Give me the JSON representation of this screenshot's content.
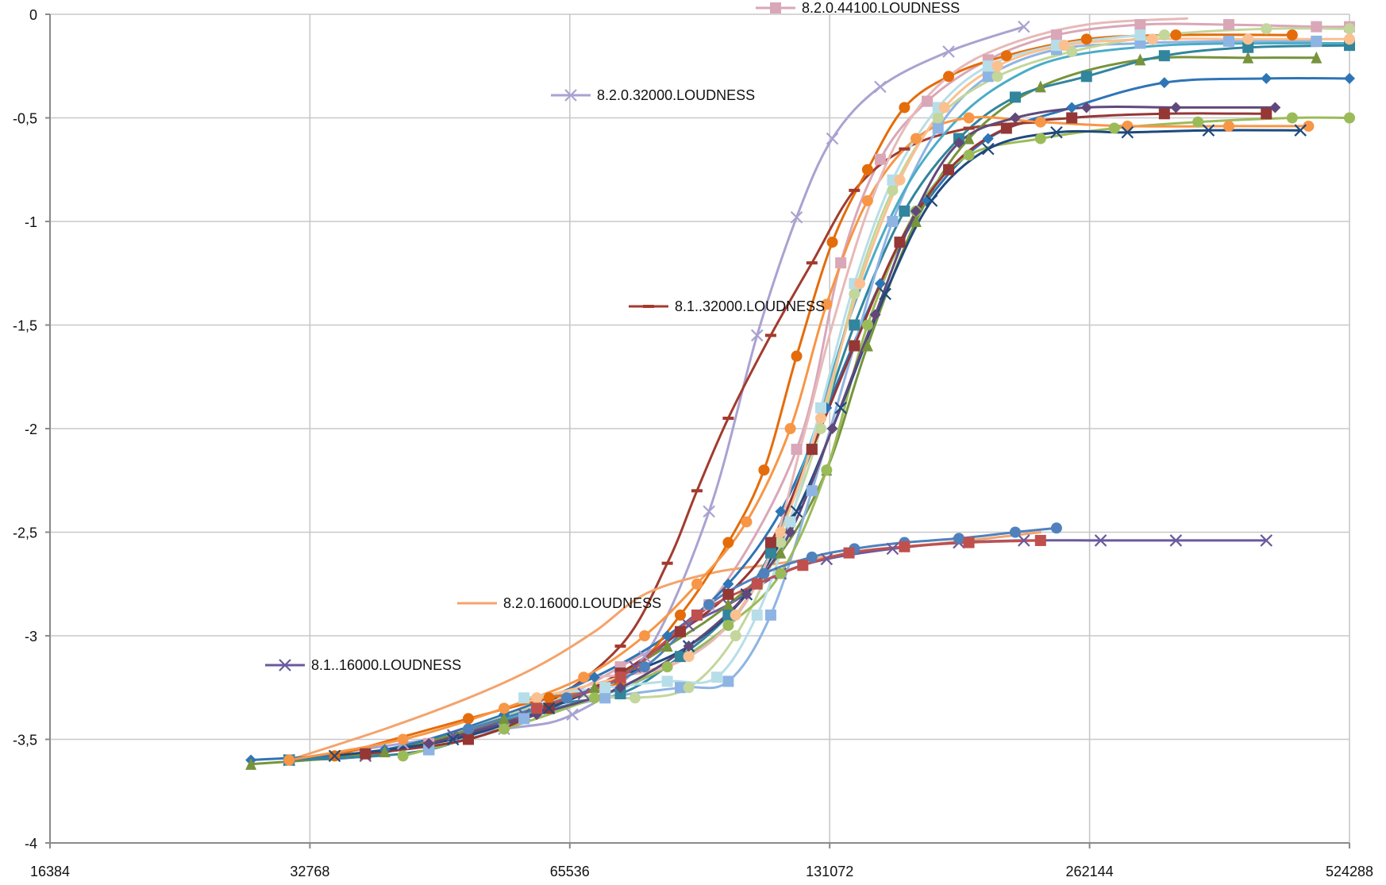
{
  "chart_data": {
    "type": "line",
    "x_scale": "log2",
    "xlim": [
      16384,
      524288
    ],
    "ylim": [
      -4,
      0
    ],
    "grid": true,
    "x_ticks": [
      16384,
      32768,
      65536,
      131072,
      262144,
      524288
    ],
    "x_tick_labels": [
      "16384",
      "32768",
      "65536",
      "131072",
      "262144",
      "524288"
    ],
    "y_ticks": [
      0,
      -0.5,
      -1,
      -1.5,
      -2,
      -2.5,
      -3,
      -3.5,
      -4
    ],
    "y_tick_labels": [
      "0",
      "-0,5",
      "-1",
      "-1,5",
      "-2",
      "-2,5",
      "-3",
      "-3,5",
      "-4"
    ],
    "series": [
      {
        "name": "8.2.0.44100.LOUDNESS",
        "color": "#d9a7b8",
        "marker": "square",
        "x": [
          31000,
          45000,
          60000,
          75000,
          95000,
          120000,
          135000,
          150000,
          170000,
          200000,
          240000,
          300000,
          380000,
          480000,
          524288
        ],
        "y": [
          -3.6,
          -3.52,
          -3.35,
          -3.15,
          -2.85,
          -2.1,
          -1.2,
          -0.7,
          -0.42,
          -0.22,
          -0.1,
          -0.05,
          -0.05,
          -0.06,
          -0.06
        ]
      },
      {
        "name": "8.2.0.32000.LOUDNESS",
        "color": "#a9a2d1",
        "marker": "x",
        "x": [
          31000,
          42000,
          55000,
          66000,
          80000,
          95000,
          108000,
          120000,
          132000,
          150000,
          180000,
          220000
        ],
        "y": [
          -3.6,
          -3.52,
          -3.45,
          -3.38,
          -3.1,
          -2.4,
          -1.55,
          -0.98,
          -0.6,
          -0.35,
          -0.18,
          -0.06
        ]
      },
      {
        "name": "8.1..32000.LOUDNESS",
        "color": "#a23b2e",
        "marker": "dash",
        "x": [
          31000,
          45000,
          60000,
          75000,
          85000,
          92000,
          100000,
          112000,
          125000,
          140000,
          160000,
          190000,
          230000
        ],
        "y": [
          -3.6,
          -3.52,
          -3.35,
          -3.05,
          -2.65,
          -2.3,
          -1.95,
          -1.55,
          -1.2,
          -0.85,
          -0.65,
          -0.55,
          -0.52
        ]
      },
      {
        "name": "8.2.0.16000.LOUDNESS",
        "color": "#f4a36c",
        "marker": "none",
        "x": [
          31000,
          40000,
          50000,
          60000,
          70000,
          80000,
          95000,
          110000,
          125000,
          140000,
          160000,
          180000,
          200000,
          230000
        ],
        "y": [
          -3.6,
          -3.45,
          -3.3,
          -3.15,
          -2.98,
          -2.8,
          -2.7,
          -2.66,
          -2.63,
          -2.6,
          -2.57,
          -2.55,
          -2.53,
          -2.5
        ]
      },
      {
        "name": "8.1..16000.LOUDNESS",
        "color": "#6b5a9e",
        "marker": "x",
        "x": [
          31000,
          38000,
          48000,
          58000,
          68000,
          78000,
          90000,
          100000,
          115000,
          130000,
          155000,
          185000,
          220000,
          270000,
          330000,
          420000
        ],
        "y": [
          -3.6,
          -3.58,
          -3.48,
          -3.38,
          -3.28,
          -3.15,
          -2.95,
          -2.85,
          -2.7,
          -2.63,
          -2.58,
          -2.55,
          -2.54,
          -2.54,
          -2.54,
          -2.54
        ]
      },
      {
        "name": "",
        "color": "#2e75b6",
        "marker": "diamond",
        "x": [
          28000,
          40000,
          55000,
          70000,
          85000,
          100000,
          115000,
          130000,
          150000,
          170000,
          200000,
          250000,
          320000,
          420000,
          524288
        ],
        "y": [
          -3.6,
          -3.55,
          -3.38,
          -3.2,
          -3.0,
          -2.75,
          -2.4,
          -1.9,
          -1.3,
          -0.9,
          -0.6,
          -0.45,
          -0.33,
          -0.31,
          -0.31
        ]
      },
      {
        "name": "",
        "color": "#77933c",
        "marker": "triangle",
        "x": [
          28000,
          40000,
          55000,
          70000,
          85000,
          100000,
          115000,
          130000,
          145000,
          165000,
          190000,
          230000,
          300000,
          400000,
          480000
        ],
        "y": [
          -3.62,
          -3.56,
          -3.4,
          -3.25,
          -3.05,
          -2.85,
          -2.6,
          -2.2,
          -1.6,
          -1.0,
          -0.6,
          -0.35,
          -0.22,
          -0.21,
          -0.21
        ]
      },
      {
        "name": "",
        "color": "#31859c",
        "marker": "square",
        "x": [
          31000,
          45000,
          60000,
          75000,
          88000,
          100000,
          112000,
          125000,
          140000,
          160000,
          185000,
          215000,
          260000,
          320000,
          400000,
          524288
        ],
        "y": [
          -3.6,
          -3.55,
          -3.35,
          -3.28,
          -3.1,
          -2.9,
          -2.6,
          -2.1,
          -1.5,
          -0.95,
          -0.6,
          -0.4,
          -0.3,
          -0.2,
          -0.16,
          -0.15
        ]
      },
      {
        "name": "",
        "color": "#e46c0a",
        "marker": "circle",
        "x": [
          35000,
          50000,
          62000,
          75000,
          88000,
          100000,
          110000,
          120000,
          132000,
          145000,
          160000,
          180000,
          210000,
          260000,
          330000,
          450000
        ],
        "y": [
          -3.58,
          -3.4,
          -3.3,
          -3.22,
          -2.9,
          -2.55,
          -2.2,
          -1.65,
          -1.1,
          -0.75,
          -0.45,
          -0.3,
          -0.2,
          -0.12,
          -0.1,
          -0.1
        ]
      },
      {
        "name": "",
        "color": "#8eb4e3",
        "marker": "square",
        "x": [
          45000,
          58000,
          72000,
          88000,
          100000,
          112000,
          125000,
          140000,
          155000,
          175000,
          200000,
          240000,
          300000,
          380000,
          480000
        ],
        "y": [
          -3.55,
          -3.4,
          -3.3,
          -3.25,
          -3.22,
          -2.9,
          -2.3,
          -1.6,
          -1.0,
          -0.55,
          -0.3,
          -0.17,
          -0.14,
          -0.13,
          -0.13
        ]
      },
      {
        "name": "",
        "color": "#c3d69b",
        "marker": "circle",
        "x": [
          50000,
          65000,
          78000,
          90000,
          102000,
          115000,
          128000,
          140000,
          155000,
          175000,
          205000,
          250000,
          320000,
          420000,
          524288
        ],
        "y": [
          -3.45,
          -3.3,
          -3.3,
          -3.25,
          -3.0,
          -2.55,
          -2.0,
          -1.35,
          -0.85,
          -0.5,
          -0.3,
          -0.18,
          -0.1,
          -0.07,
          -0.07
        ]
      },
      {
        "name": "",
        "color": "#4bacc6",
        "marker": "none",
        "x": [
          55000,
          70000,
          85000,
          100000,
          112000,
          125000,
          140000,
          160000,
          185000,
          215000,
          250000,
          320000,
          420000,
          524288
        ],
        "y": [
          -3.4,
          -3.3,
          -3.15,
          -2.95,
          -2.6,
          -2.05,
          -1.4,
          -0.85,
          -0.5,
          -0.3,
          -0.2,
          -0.15,
          -0.14,
          -0.14
        ]
      },
      {
        "name": "",
        "color": "#9bbb59",
        "marker": "circle",
        "x": [
          42000,
          55000,
          70000,
          85000,
          100000,
          115000,
          130000,
          145000,
          165000,
          190000,
          230000,
          280000,
          350000,
          450000,
          524288
        ],
        "y": [
          -3.58,
          -3.45,
          -3.3,
          -3.15,
          -2.95,
          -2.7,
          -2.2,
          -1.5,
          -0.95,
          -0.68,
          -0.6,
          -0.55,
          -0.52,
          -0.5,
          -0.5
        ]
      },
      {
        "name": "",
        "color": "#953735",
        "marker": "square",
        "x": [
          38000,
          50000,
          62000,
          75000,
          88000,
          100000,
          112000,
          125000,
          140000,
          158000,
          180000,
          210000,
          250000,
          320000,
          420000
        ],
        "y": [
          -3.57,
          -3.5,
          -3.35,
          -3.18,
          -2.98,
          -2.8,
          -2.55,
          -2.1,
          -1.6,
          -1.1,
          -0.75,
          -0.55,
          -0.5,
          -0.48,
          -0.48
        ]
      },
      {
        "name": "",
        "color": "#f79646",
        "marker": "circle",
        "x": [
          31000,
          42000,
          55000,
          68000,
          80000,
          92000,
          105000,
          118000,
          130000,
          145000,
          165000,
          190000,
          230000,
          290000,
          380000,
          470000
        ],
        "y": [
          -3.6,
          -3.5,
          -3.35,
          -3.2,
          -3.0,
          -2.75,
          -2.45,
          -2.0,
          -1.4,
          -0.9,
          -0.6,
          -0.5,
          -0.52,
          -0.54,
          -0.54,
          -0.54
        ]
      },
      {
        "name": "",
        "color": "#1f497d",
        "marker": "x",
        "x": [
          35000,
          48000,
          62000,
          75000,
          90000,
          105000,
          120000,
          135000,
          152000,
          172000,
          200000,
          240000,
          290000,
          360000,
          460000
        ],
        "y": [
          -3.58,
          -3.5,
          -3.35,
          -3.2,
          -3.05,
          -2.8,
          -2.4,
          -1.9,
          -1.35,
          -0.9,
          -0.65,
          -0.57,
          -0.57,
          -0.56,
          -0.56
        ]
      },
      {
        "name": "",
        "color": "#b7dee8",
        "marker": "square",
        "x": [
          58000,
          72000,
          85000,
          97000,
          108000,
          118000,
          128000,
          140000,
          155000,
          175000,
          200000,
          240000,
          300000
        ],
        "y": [
          -3.3,
          -3.25,
          -3.22,
          -3.2,
          -2.9,
          -2.45,
          -1.9,
          -1.3,
          -0.8,
          -0.45,
          -0.25,
          -0.15,
          -0.1
        ]
      },
      {
        "name": "",
        "color": "#fac090",
        "marker": "circle",
        "x": [
          60000,
          75000,
          90000,
          102000,
          115000,
          128000,
          142000,
          158000,
          178000,
          205000,
          245000,
          310000,
          400000,
          524288
        ],
        "y": [
          -3.3,
          -3.2,
          -3.1,
          -2.9,
          -2.5,
          -1.95,
          -1.3,
          -0.8,
          -0.45,
          -0.25,
          -0.15,
          -0.12,
          -0.12,
          -0.12
        ]
      },
      {
        "name": "",
        "color": "#e6b9b8",
        "marker": "none",
        "x": [
          70000,
          85000,
          100000,
          112000,
          122000,
          132000,
          145000,
          160000,
          180000,
          210000,
          260000,
          340000
        ],
        "y": [
          -3.2,
          -3.15,
          -2.95,
          -2.6,
          -2.05,
          -1.5,
          -0.95,
          -0.55,
          -0.3,
          -0.15,
          -0.05,
          -0.02
        ]
      },
      {
        "name": "",
        "color": "#60497a",
        "marker": "diamond",
        "x": [
          45000,
          60000,
          75000,
          90000,
          105000,
          118000,
          132000,
          148000,
          165000,
          185000,
          215000,
          260000,
          330000,
          430000
        ],
        "y": [
          -3.52,
          -3.38,
          -3.25,
          -3.05,
          -2.8,
          -2.5,
          -2.0,
          -1.45,
          -0.95,
          -0.62,
          -0.5,
          -0.45,
          -0.45,
          -0.45
        ]
      },
      {
        "name": "",
        "color": "#4f81bd",
        "marker": "circle",
        "x": [
          50000,
          65000,
          80000,
          95000,
          110000,
          125000,
          140000,
          160000,
          185000,
          215000,
          240000
        ],
        "y": [
          -3.45,
          -3.3,
          -3.15,
          -2.85,
          -2.7,
          -2.62,
          -2.58,
          -2.55,
          -2.53,
          -2.5,
          -2.48
        ]
      },
      {
        "name": "",
        "color": "#c0504d",
        "marker": "square",
        "x": [
          60000,
          75000,
          92000,
          108000,
          122000,
          138000,
          160000,
          190000,
          230000
        ],
        "y": [
          -3.35,
          -3.2,
          -2.9,
          -2.75,
          -2.66,
          -2.6,
          -2.57,
          -2.55,
          -2.54
        ]
      }
    ]
  }
}
